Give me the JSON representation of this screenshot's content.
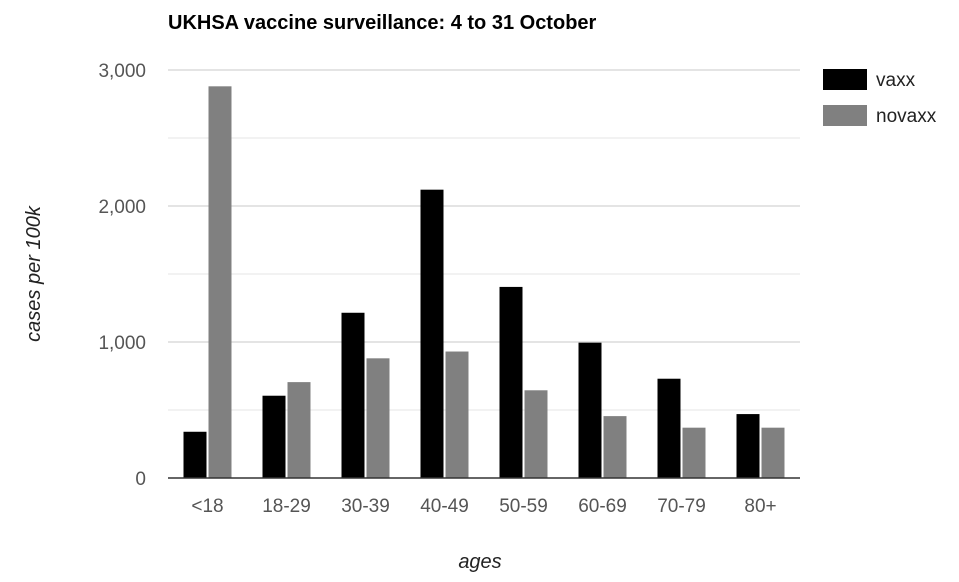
{
  "chart_data": {
    "type": "bar",
    "title": "UKHSA vaccine surveillance: 4 to 31 October",
    "xlabel": "ages",
    "ylabel": "cases per 100k",
    "categories": [
      "<18",
      "18-29",
      "30-39",
      "40-49",
      "50-59",
      "60-69",
      "70-79",
      "80+"
    ],
    "series": [
      {
        "name": "vaxx",
        "color": "#000000",
        "values": [
          340,
          605,
          1215,
          2120,
          1405,
          995,
          730,
          470
        ]
      },
      {
        "name": "novaxx",
        "color": "#808080",
        "values": [
          2880,
          705,
          880,
          930,
          645,
          455,
          370,
          370
        ]
      }
    ],
    "ylim": [
      0,
      3000
    ],
    "yticks": [
      0,
      1000,
      2000,
      3000
    ],
    "ytick_labels": [
      "0",
      "1,000",
      "2,000",
      "3,000"
    ],
    "grid": true,
    "legend_position": "top-right"
  }
}
